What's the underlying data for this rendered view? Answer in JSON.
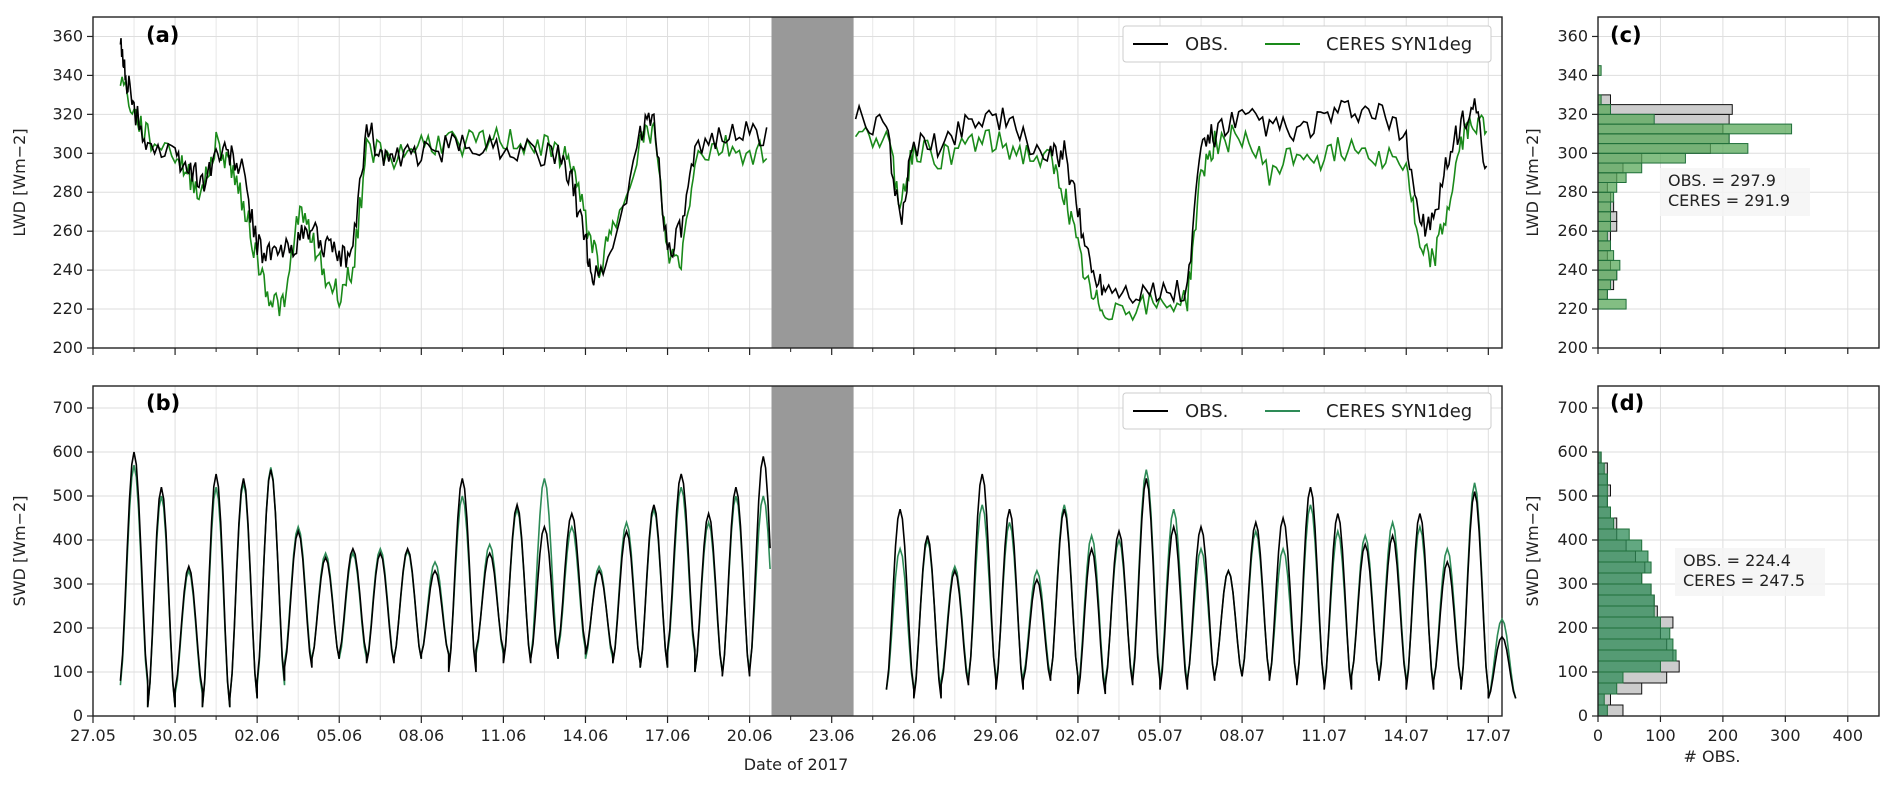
{
  "chart_data": [
    {
      "panel": "(a)",
      "type": "line",
      "xlabel": "",
      "ylabel": "LWD [Wm$^{-2}$]",
      "ylabel_display": "LWD [Wm−2]",
      "ylim": [
        200,
        370
      ],
      "yticks": [
        200,
        220,
        240,
        260,
        280,
        300,
        320,
        340,
        360
      ],
      "xlim_days": [
        0,
        51.5
      ],
      "gap_days": [
        24.8,
        27.8
      ],
      "gap_color": "#999999",
      "grid": true,
      "legend_position": "top-right",
      "series": [
        {
          "name": "OBS.",
          "color": "#000000",
          "points": [
            [
              1.0,
              355
            ],
            [
              1.2,
              340
            ],
            [
              1.5,
              322
            ],
            [
              2.0,
              305
            ],
            [
              3.0,
              298
            ],
            [
              3.5,
              292
            ],
            [
              4.0,
              285
            ],
            [
              4.5,
              300
            ],
            [
              5.0,
              300
            ],
            [
              5.5,
              290
            ],
            [
              6.0,
              252
            ],
            [
              6.5,
              248
            ],
            [
              7.0,
              250
            ],
            [
              7.5,
              255
            ],
            [
              8.0,
              262
            ],
            [
              8.5,
              252
            ],
            [
              9.0,
              245
            ],
            [
              9.5,
              250
            ],
            [
              10.0,
              315
            ],
            [
              10.5,
              300
            ],
            [
              11.0,
              296
            ],
            [
              12.0,
              300
            ],
            [
              13.0,
              303
            ],
            [
              14.0,
              305
            ],
            [
              15.0,
              303
            ],
            [
              16.0,
              302
            ],
            [
              17.0,
              298
            ],
            [
              17.5,
              285
            ],
            [
              18.0,
              255
            ],
            [
              18.3,
              235
            ],
            [
              19.0,
              250
            ],
            [
              20.0,
              310
            ],
            [
              20.5,
              320
            ],
            [
              21.0,
              250
            ],
            [
              21.5,
              260
            ],
            [
              22.0,
              298
            ],
            [
              23.0,
              312
            ],
            [
              24.0,
              310
            ],
            [
              25.0,
              308
            ],
            [
              26.0,
              315
            ],
            [
              27.0,
              308
            ],
            [
              28.0,
              320
            ],
            [
              29.0,
              312
            ],
            [
              29.5,
              265
            ],
            [
              30.0,
              305
            ],
            [
              31.0,
              303
            ],
            [
              32.0,
              318
            ],
            [
              33.0,
              320
            ],
            [
              34.0,
              308
            ],
            [
              35.0,
              298
            ],
            [
              35.5,
              300
            ],
            [
              36.0,
              270
            ],
            [
              36.5,
              240
            ],
            [
              37.0,
              232
            ],
            [
              38.0,
              230
            ],
            [
              39.0,
              228
            ],
            [
              40.0,
              230
            ],
            [
              40.5,
              305
            ],
            [
              41.0,
              310
            ],
            [
              42.0,
              318
            ],
            [
              43.0,
              315
            ],
            [
              44.0,
              310
            ],
            [
              45.0,
              318
            ],
            [
              46.0,
              322
            ],
            [
              47.0,
              320
            ],
            [
              48.0,
              308
            ],
            [
              48.5,
              265
            ],
            [
              49.0,
              263
            ],
            [
              49.5,
              295
            ],
            [
              50.0,
              315
            ],
            [
              50.5,
              325
            ],
            [
              51.0,
              283
            ]
          ]
        },
        {
          "name": "CERES SYN1deg",
          "color": "#1a8a1a",
          "points": [
            [
              1.0,
              340
            ],
            [
              1.5,
              320
            ],
            [
              2.0,
              308
            ],
            [
              3.0,
              300
            ],
            [
              3.5,
              288
            ],
            [
              4.0,
              280
            ],
            [
              4.5,
              305
            ],
            [
              5.0,
              295
            ],
            [
              5.5,
              275
            ],
            [
              6.0,
              245
            ],
            [
              6.5,
              225
            ],
            [
              7.0,
              220
            ],
            [
              7.5,
              270
            ],
            [
              8.0,
              258
            ],
            [
              8.5,
              235
            ],
            [
              9.0,
              228
            ],
            [
              9.5,
              240
            ],
            [
              10.0,
              302
            ],
            [
              11.0,
              298
            ],
            [
              12.0,
              305
            ],
            [
              13.0,
              306
            ],
            [
              14.0,
              305
            ],
            [
              15.0,
              307
            ],
            [
              16.0,
              305
            ],
            [
              17.0,
              300
            ],
            [
              17.5,
              295
            ],
            [
              18.0,
              265
            ],
            [
              18.5,
              242
            ],
            [
              19.0,
              260
            ],
            [
              20.0,
              306
            ],
            [
              20.5,
              312
            ],
            [
              21.0,
              248
            ],
            [
              21.5,
              245
            ],
            [
              22.0,
              298
            ],
            [
              23.0,
              304
            ],
            [
              24.0,
              300
            ],
            [
              25.0,
              302
            ],
            [
              26.0,
              306
            ],
            [
              27.0,
              305
            ],
            [
              28.0,
              308
            ],
            [
              29.0,
              310
            ],
            [
              29.5,
              275
            ],
            [
              30.0,
              303
            ],
            [
              31.0,
              298
            ],
            [
              32.0,
              306
            ],
            [
              33.0,
              305
            ],
            [
              34.0,
              300
            ],
            [
              35.0,
              295
            ],
            [
              35.5,
              280
            ],
            [
              36.0,
              250
            ],
            [
              36.5,
              225
            ],
            [
              37.0,
              220
            ],
            [
              38.0,
              221
            ],
            [
              39.0,
              222
            ],
            [
              40.0,
              225
            ],
            [
              40.5,
              290
            ],
            [
              41.0,
              305
            ],
            [
              42.0,
              310
            ],
            [
              43.0,
              290
            ],
            [
              44.0,
              300
            ],
            [
              45.0,
              298
            ],
            [
              46.0,
              305
            ],
            [
              47.0,
              300
            ],
            [
              48.0,
              295
            ],
            [
              48.5,
              248
            ],
            [
              49.0,
              245
            ],
            [
              49.5,
              270
            ],
            [
              50.0,
              305
            ],
            [
              50.5,
              318
            ],
            [
              51.0,
              311
            ]
          ]
        }
      ]
    },
    {
      "panel": "(b)",
      "type": "line",
      "xlabel": "Date of 2017",
      "ylabel": "SWD [Wm$^{-2}$]",
      "ylabel_display": "SWD [Wm−2]",
      "ylim": [
        0,
        750
      ],
      "yticks": [
        0,
        100,
        200,
        300,
        400,
        500,
        600,
        700
      ],
      "xlim_days": [
        0,
        51.5
      ],
      "gap_days": [
        24.8,
        27.8
      ],
      "gap_color": "#999999",
      "grid": true,
      "legend_position": "top-right",
      "x_ticks": [
        "27.05",
        "30.05",
        "02.06",
        "05.06",
        "08.06",
        "11.06",
        "14.06",
        "17.06",
        "20.06",
        "23.06",
        "26.06",
        "29.06",
        "02.07",
        "05.07",
        "08.07",
        "11.07",
        "14.07",
        "17.07"
      ],
      "x_tick_days": [
        0,
        3,
        6,
        9,
        12,
        15,
        18,
        21,
        24,
        27,
        30,
        33,
        36,
        39,
        42,
        45,
        48,
        51
      ],
      "series": [
        {
          "name": "OBS.",
          "color": "#000000",
          "daily_peaks": [
            600,
            520,
            340,
            550,
            540,
            560,
            420,
            360,
            380,
            370,
            380,
            330,
            540,
            370,
            480,
            430,
            460,
            330,
            420,
            480,
            550,
            460,
            520,
            590,
            520,
            0,
            0,
            0,
            470,
            410,
            330,
            550,
            470,
            310,
            470,
            380,
            420,
            540,
            430,
            430,
            330,
            440,
            450,
            520,
            460,
            390,
            410,
            460,
            350,
            510,
            180
          ],
          "daily_lows": [
            80,
            20,
            60,
            20,
            40,
            80,
            110,
            130,
            140,
            120,
            130,
            140,
            100,
            150,
            120,
            130,
            160,
            140,
            120,
            110,
            150,
            100,
            90,
            100,
            90,
            0,
            0,
            0,
            60,
            40,
            70,
            80,
            60,
            80,
            90,
            50,
            70,
            80,
            60,
            80,
            90,
            90,
            80,
            70,
            60,
            90,
            80,
            60,
            80,
            60,
            40
          ]
        },
        {
          "name": "CERES SYN1deg",
          "color": "#2e8b57",
          "daily_peaks": [
            570,
            500,
            330,
            520,
            530,
            565,
            430,
            370,
            370,
            380,
            375,
            350,
            500,
            390,
            470,
            540,
            430,
            340,
            440,
            470,
            520,
            440,
            500,
            500,
            410,
            0,
            0,
            0,
            380,
            400,
            340,
            480,
            440,
            330,
            480,
            410,
            400,
            560,
            470,
            380,
            330,
            420,
            380,
            480,
            420,
            410,
            440,
            430,
            380,
            530,
            220
          ],
          "daily_lows": [
            70,
            20,
            50,
            20,
            40,
            70,
            120,
            130,
            130,
            125,
            130,
            140,
            110,
            140,
            125,
            130,
            150,
            130,
            120,
            110,
            140,
            100,
            95,
            110,
            95,
            0,
            0,
            0,
            60,
            50,
            80,
            90,
            70,
            90,
            90,
            60,
            80,
            90,
            70,
            85,
            90,
            95,
            85,
            75,
            70,
            90,
            85,
            70,
            80,
            60,
            40
          ]
        }
      ]
    },
    {
      "panel": "(c)",
      "type": "bar",
      "orientation": "horizontal",
      "ylabel": "LWD [Wm$^{-2}$]",
      "ylabel_display": "LWD [Wm−2]",
      "ylim": [
        200,
        370
      ],
      "yticks": [
        200,
        220,
        240,
        260,
        280,
        300,
        320,
        340,
        360
      ],
      "xlim": [
        0,
        450
      ],
      "xticks": [],
      "bin_width": 5,
      "bin_starts": [
        220,
        225,
        230,
        235,
        240,
        245,
        250,
        255,
        260,
        265,
        270,
        275,
        280,
        285,
        290,
        295,
        300,
        305,
        310,
        315,
        320,
        325,
        330,
        335,
        340
      ],
      "series": [
        {
          "name": "OBS.",
          "color": "#cccccc",
          "counts": [
            0,
            15,
            25,
            30,
            20,
            15,
            20,
            20,
            30,
            30,
            25,
            20,
            15,
            30,
            40,
            70,
            180,
            210,
            200,
            210,
            215,
            20,
            0,
            0,
            0
          ]
        },
        {
          "name": "CERES SYN1deg",
          "color": "#5aa85a",
          "counts": [
            45,
            15,
            20,
            30,
            35,
            25,
            20,
            15,
            20,
            20,
            20,
            25,
            30,
            45,
            70,
            140,
            240,
            210,
            310,
            90,
            20,
            5,
            0,
            0,
            5
          ]
        }
      ],
      "stats_label": "OBS. = 297.9\nCERES = 291.9",
      "stats_lines": [
        "OBS. = 297.9",
        "CERES = 291.9"
      ]
    },
    {
      "panel": "(d)",
      "type": "bar",
      "orientation": "horizontal",
      "xlabel": "# OBS.",
      "ylabel": "SWD [Wm$^{-2}$]",
      "ylabel_display": "SWD [Wm−2]",
      "ylim": [
        0,
        750
      ],
      "yticks": [
        0,
        100,
        200,
        300,
        400,
        500,
        600,
        700
      ],
      "xlim": [
        0,
        450
      ],
      "xticks": [
        0,
        100,
        200,
        300,
        400
      ],
      "bin_width": 25,
      "bin_starts": [
        0,
        25,
        50,
        75,
        100,
        125,
        150,
        175,
        200,
        225,
        250,
        275,
        300,
        325,
        350,
        375,
        400,
        425,
        450,
        475,
        500,
        525,
        550,
        575
      ],
      "series": [
        {
          "name": "OBS.",
          "color": "#cccccc",
          "counts": [
            40,
            20,
            70,
            110,
            130,
            120,
            110,
            100,
            120,
            95,
            90,
            85,
            70,
            75,
            60,
            45,
            30,
            30,
            20,
            15,
            20,
            15,
            15,
            5
          ]
        },
        {
          "name": "CERES SYN1deg",
          "color": "#2e8b57",
          "counts": [
            15,
            10,
            30,
            40,
            100,
            125,
            120,
            115,
            100,
            90,
            90,
            85,
            70,
            85,
            80,
            70,
            50,
            25,
            20,
            15,
            15,
            15,
            10,
            5
          ]
        }
      ],
      "stats_label": "OBS. = 224.4\nCERES = 247.5",
      "stats_lines": [
        "OBS. = 224.4",
        "CERES = 247.5"
      ]
    }
  ],
  "labels": {
    "panel_a": "(a)",
    "panel_b": "(b)",
    "panel_c": "(c)",
    "panel_d": "(d)",
    "legend_obs": "OBS.",
    "legend_ceres": "CERES SYN1deg",
    "xlabel_time": "Date of 2017",
    "xlabel_hist": "# OBS."
  }
}
